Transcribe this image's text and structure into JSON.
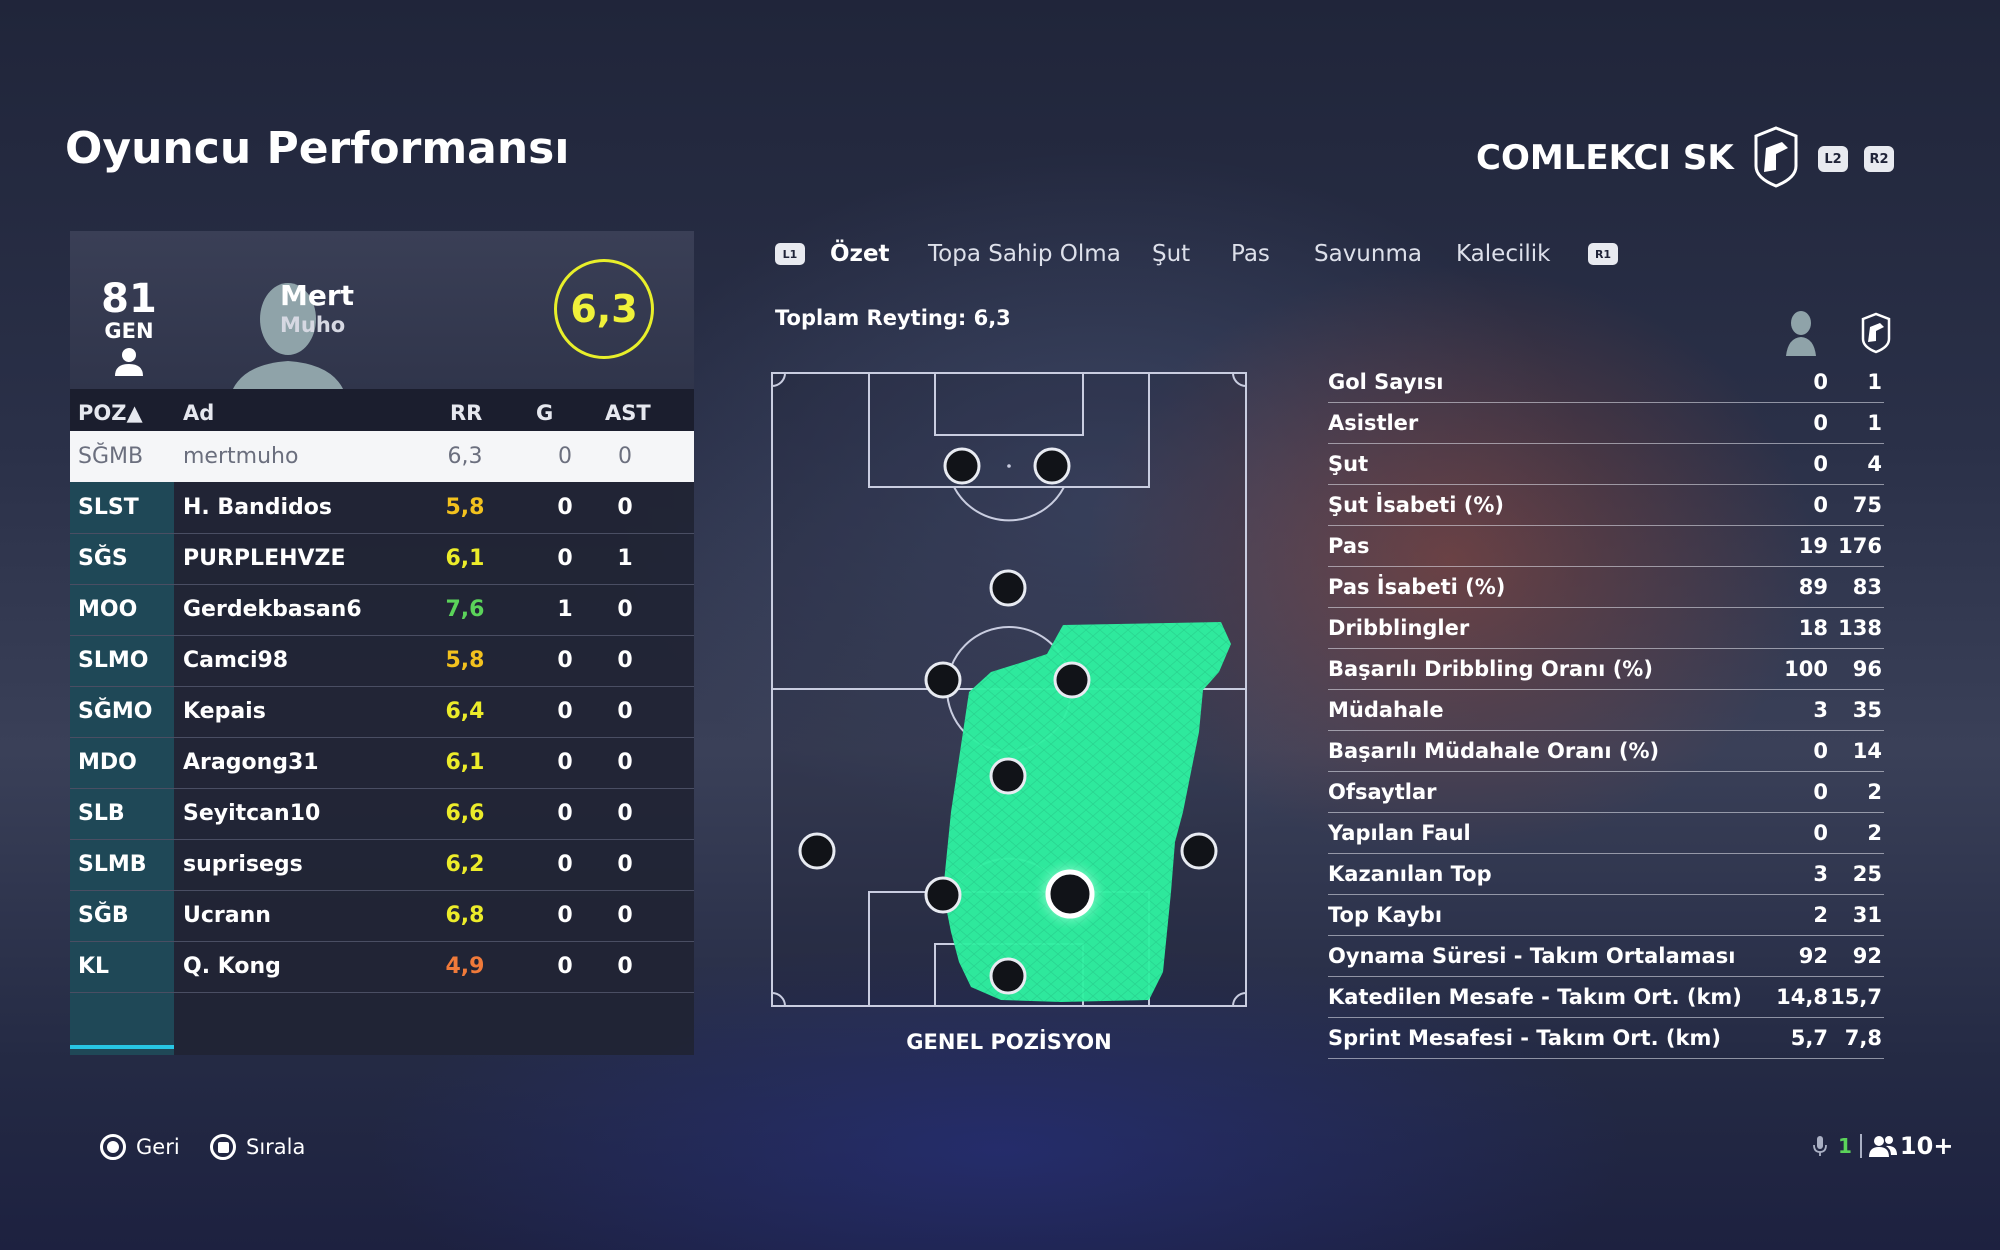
{
  "page_title": "Oyuncu Performansı",
  "club": {
    "name": "COMLEKCI SK",
    "l2_label": "L2",
    "r2_label": "R2"
  },
  "player": {
    "overall": "81",
    "overall_label": "GEN",
    "first_name": "Mert",
    "last_name": "Muho",
    "rating": "6,3"
  },
  "table": {
    "headers": {
      "poz": "POZ▲",
      "name": "Ad",
      "rr": "RR",
      "g": "G",
      "ast": "AST"
    },
    "rows": [
      {
        "poz": "SĞMB",
        "name": "mertmuho",
        "rr": "6,3",
        "g": "0",
        "ast": "0",
        "rr_color": "#6b6f7e"
      },
      {
        "poz": "SLST",
        "name": "H. Bandidos",
        "rr": "5,8",
        "g": "0",
        "ast": "0",
        "rr_color": "#f3c21e"
      },
      {
        "poz": "SĞS",
        "name": "PURPLEHVZE",
        "rr": "6,1",
        "g": "0",
        "ast": "1",
        "rr_color": "#ecec2a"
      },
      {
        "poz": "MOO",
        "name": "Gerdekbasan6",
        "rr": "7,6",
        "g": "1",
        "ast": "0",
        "rr_color": "#5bd35a"
      },
      {
        "poz": "SLMO",
        "name": "Camci98",
        "rr": "5,8",
        "g": "0",
        "ast": "0",
        "rr_color": "#f3c21e"
      },
      {
        "poz": "SĞMO",
        "name": "Kepais",
        "rr": "6,4",
        "g": "0",
        "ast": "0",
        "rr_color": "#ecec2a"
      },
      {
        "poz": "MDO",
        "name": "Aragong31",
        "rr": "6,1",
        "g": "0",
        "ast": "0",
        "rr_color": "#ecec2a"
      },
      {
        "poz": "SLB",
        "name": "Seyitcan10",
        "rr": "6,6",
        "g": "0",
        "ast": "0",
        "rr_color": "#ecec2a"
      },
      {
        "poz": "SLMB",
        "name": "suprisegs",
        "rr": "6,2",
        "g": "0",
        "ast": "0",
        "rr_color": "#ecec2a"
      },
      {
        "poz": "SĞB",
        "name": "Ucrann",
        "rr": "6,8",
        "g": "0",
        "ast": "0",
        "rr_color": "#ecec2a"
      },
      {
        "poz": "KL",
        "name": "Q. Kong",
        "rr": "4,9",
        "g": "0",
        "ast": "0",
        "rr_color": "#f07a3a"
      }
    ]
  },
  "tabs": {
    "l1": "L1",
    "r1": "R1",
    "items": [
      "Özet",
      "Topa Sahip Olma",
      "Şut",
      "Pas",
      "Savunma",
      "Kalecilik"
    ]
  },
  "total_rating_label": "Toplam Reyting: 6,3",
  "pitch_label": "GENEL POZİSYON",
  "stats": [
    {
      "label": "Gol Sayısı",
      "player": "0",
      "team": "1"
    },
    {
      "label": "Asistler",
      "player": "0",
      "team": "1"
    },
    {
      "label": "Şut",
      "player": "0",
      "team": "4"
    },
    {
      "label": "Şut İsabeti (%)",
      "player": "0",
      "team": "75"
    },
    {
      "label": "Pas",
      "player": "19",
      "team": "176"
    },
    {
      "label": "Pas İsabeti (%)",
      "player": "89",
      "team": "83"
    },
    {
      "label": "Dribblingler",
      "player": "18",
      "team": "138"
    },
    {
      "label": "Başarılı Dribbling Oranı (%)",
      "player": "100",
      "team": "96"
    },
    {
      "label": "Müdahale",
      "player": "3",
      "team": "35"
    },
    {
      "label": "Başarılı Müdahale Oranı (%)",
      "player": "0",
      "team": "14"
    },
    {
      "label": "Ofsaytlar",
      "player": "0",
      "team": "2"
    },
    {
      "label": "Yapılan Faul",
      "player": "0",
      "team": "2"
    },
    {
      "label": "Kazanılan Top",
      "player": "3",
      "team": "25"
    },
    {
      "label": "Top Kaybı",
      "player": "2",
      "team": "31"
    },
    {
      "label": "Oynama Süresi - Takım Ortalaması",
      "player": "92",
      "team": "92"
    },
    {
      "label": "Katedilen Mesafe - Takım Ort. (km)",
      "player": "14,8",
      "team": "15,7"
    },
    {
      "label": "Sprint Mesafesi - Takım Ort. (km)",
      "player": "5,7",
      "team": "7,8"
    }
  ],
  "footer": {
    "back": "Geri",
    "sort": "Sırala",
    "mic_count": "1",
    "players_count": "10+"
  },
  "colors": {
    "accent": "#27c6e4",
    "rating_ring": "#e8ef2a",
    "heatmap": "#2dfca0"
  }
}
